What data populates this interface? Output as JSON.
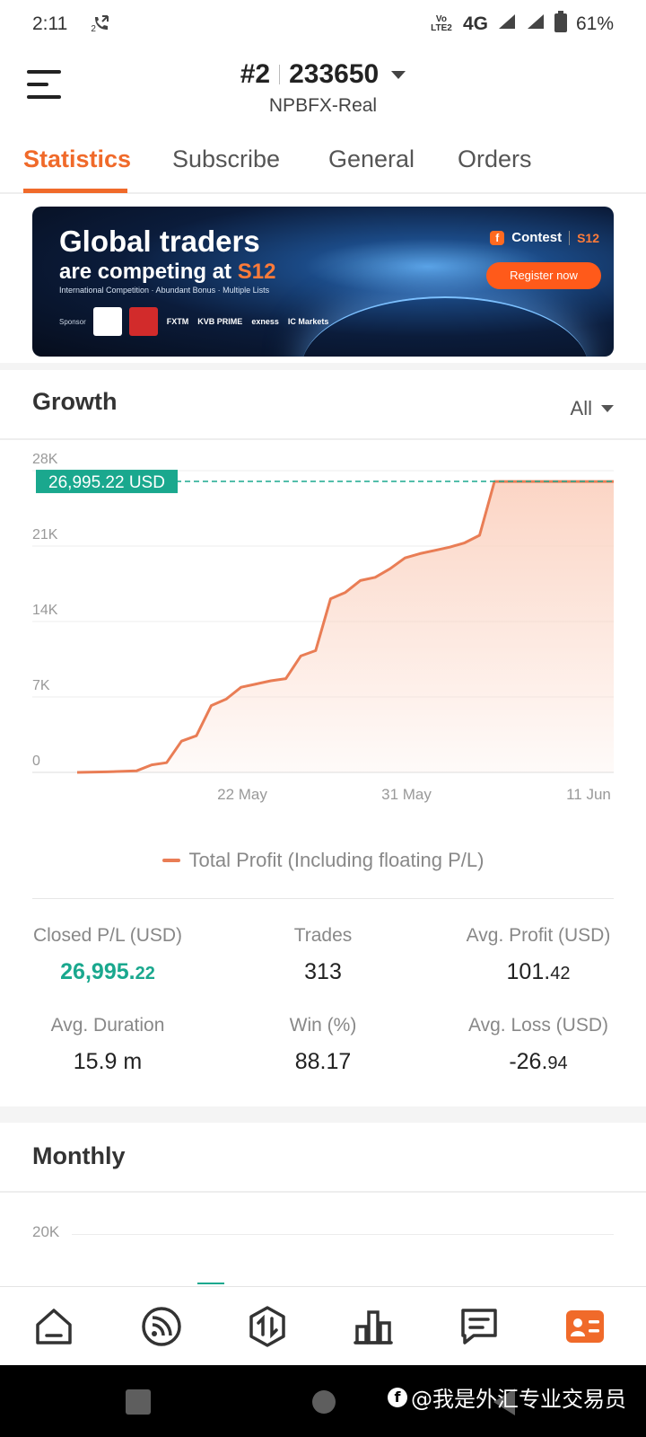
{
  "status_bar": {
    "time": "2:11",
    "call_forward_label": "2",
    "volte_label": "Vo LTE2",
    "network": "4G",
    "battery": "61%"
  },
  "header": {
    "account_rank": "#2",
    "account_id": "233650",
    "server": "NPBFX-Real"
  },
  "tabs": [
    {
      "label": "Statistics",
      "active": true
    },
    {
      "label": "Subscribe",
      "active": false
    },
    {
      "label": "General",
      "active": false
    },
    {
      "label": "Orders",
      "active": false
    }
  ],
  "banner": {
    "title_line1": "Global traders",
    "title_line2": "are competing at ",
    "title_brand": "S12",
    "subtitle": "International Competition · Abundant Bonus · Multiple Lists",
    "sponsor_label": "Sponsor",
    "sponsor_names": [
      "FXTM",
      "KVB PRIME",
      "exness",
      "IC Markets"
    ],
    "contest_label": "Contest",
    "contest_brand": "S12",
    "register_label": "Register now"
  },
  "growth": {
    "title": "Growth",
    "range": "All",
    "current_value_label": "26,995.22 USD",
    "legend": "Total Profit (Including floating P/L)"
  },
  "chart_data": {
    "type": "area",
    "series": [
      {
        "name": "Total Profit (Including floating P/L)",
        "x": [
          0,
          2,
          4,
          5,
          6,
          7,
          8,
          9,
          10,
          11,
          12,
          13,
          14,
          15,
          16,
          17,
          18,
          19,
          20,
          21,
          22,
          23,
          24,
          25,
          26,
          27,
          28,
          29,
          30,
          31,
          32,
          33,
          34,
          35,
          36
        ],
        "y": [
          0,
          50,
          150,
          700,
          900,
          2900,
          3400,
          6200,
          6800,
          7900,
          8200,
          8500,
          8700,
          10800,
          11300,
          16100,
          16700,
          17800,
          18100,
          18900,
          19900,
          20300,
          20600,
          20900,
          21300,
          22000,
          26995.22,
          26995.22,
          26995.22,
          26995.22,
          26995.22,
          26995.22,
          26995.22,
          26995.22,
          26995.22
        ]
      }
    ],
    "x_tick_labels": [
      "22 May",
      "31 May",
      "11 Jun"
    ],
    "y_tick_labels": [
      "0",
      "7K",
      "14K",
      "21K",
      "28K"
    ],
    "ylim": [
      0,
      28000
    ],
    "current_value": 26995.22,
    "line_color": "#e97d55",
    "fill_color": "#fbd3c2",
    "marker_color": "#1aa88e"
  },
  "stats": {
    "closed_pl_label": "Closed P/L (USD)",
    "closed_pl_int": "26,995.",
    "closed_pl_dec": "22",
    "trades_label": "Trades",
    "trades_value": "313",
    "avg_profit_label": "Avg. Profit (USD)",
    "avg_profit_int": "101.",
    "avg_profit_dec": "42",
    "avg_duration_label": "Avg. Duration",
    "avg_duration_value": "15.9 m",
    "win_label": "Win (%)",
    "win_value": "88.17",
    "avg_loss_label": "Avg. Loss (USD)",
    "avg_loss_int": "-26.",
    "avg_loss_dec": "94"
  },
  "monthly": {
    "title": "Monthly",
    "y_tick": "20K"
  },
  "bottom_nav": [
    {
      "icon": "home-icon"
    },
    {
      "icon": "feed-icon"
    },
    {
      "icon": "trade-icon"
    },
    {
      "icon": "chart-icon"
    },
    {
      "icon": "message-icon"
    },
    {
      "icon": "profile-card-icon",
      "active": true
    }
  ],
  "watermark": "@我是外汇专业交易员",
  "colors": {
    "accent": "#f06a2a",
    "positive": "#1aa88e"
  }
}
